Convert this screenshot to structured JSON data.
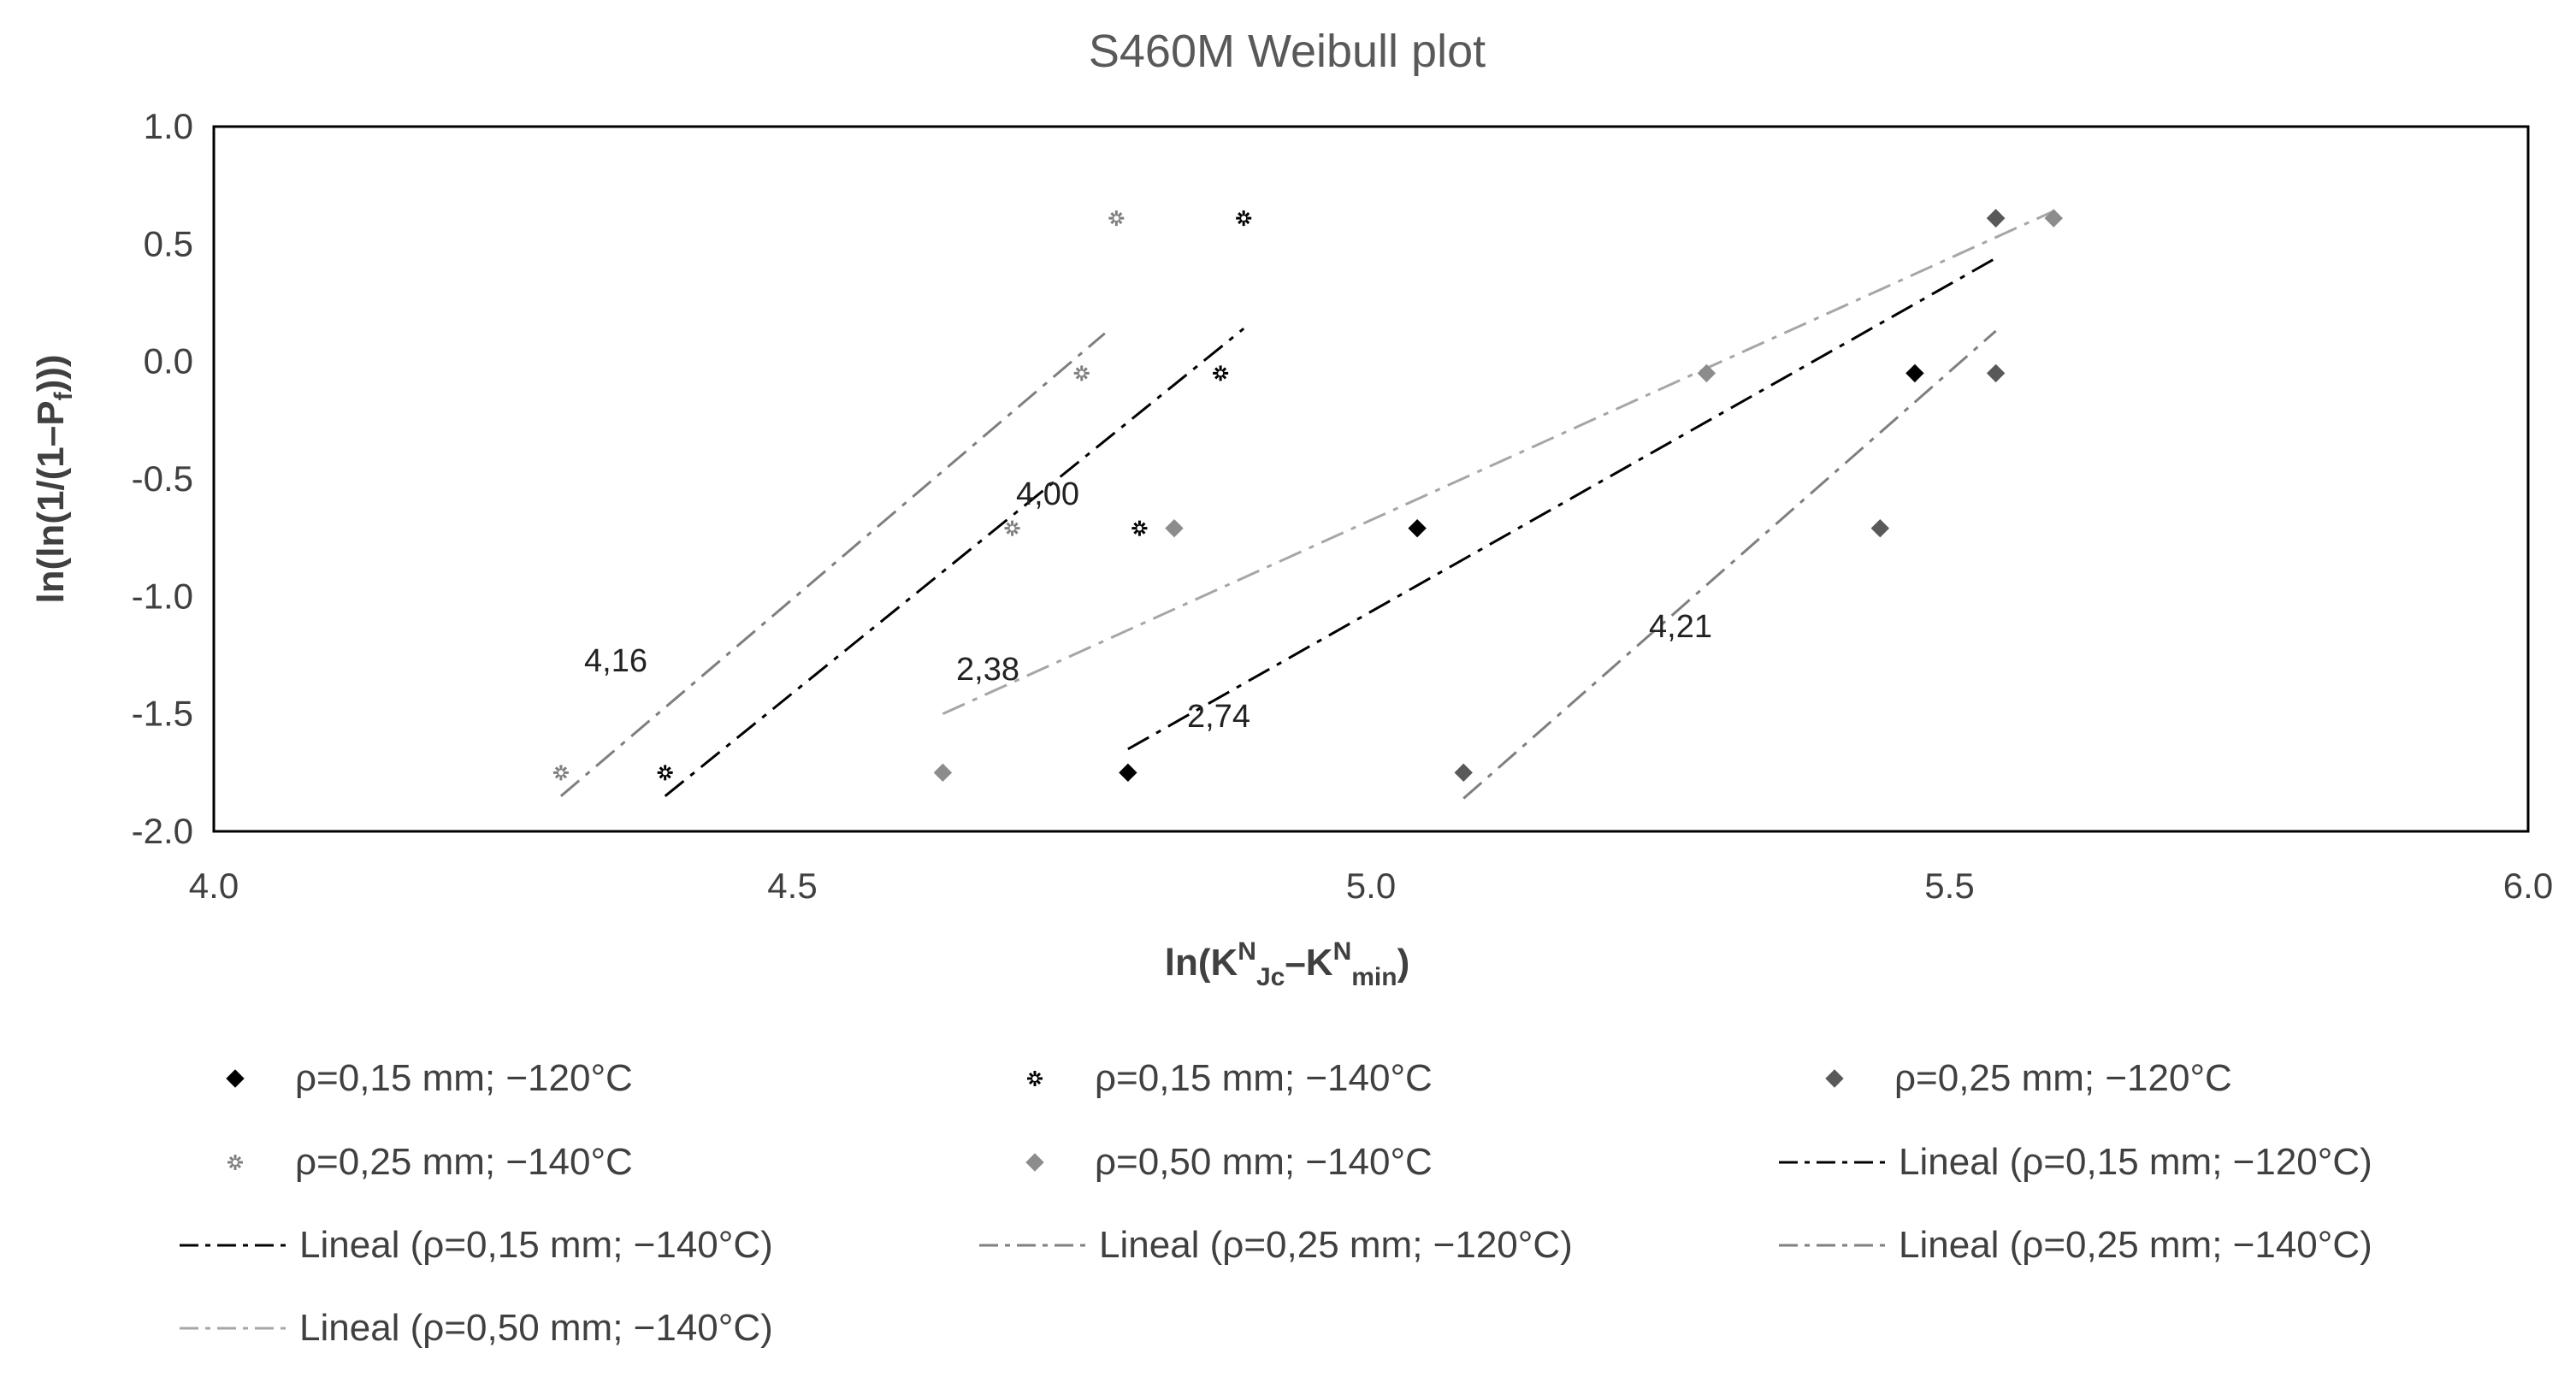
{
  "chart_data": {
    "type": "scatter",
    "title": "S460M Weibull plot",
    "xlabel": {
      "main": "ln(K",
      "sup1": "N",
      "sub1": "Jc",
      "mid": "–K",
      "sup2": "N",
      "sub2": "min",
      "end": ")"
    },
    "ylabel": {
      "main": "ln(ln(1/(1–P",
      "sub": "f",
      "end": ")))"
    },
    "xlim": [
      4.0,
      6.0
    ],
    "ylim": [
      -2.0,
      1.0
    ],
    "x_ticks": [
      "4.0",
      "4.5",
      "5.0",
      "5.5",
      "6.0"
    ],
    "y_ticks": [
      "1.0",
      "0.5",
      "0.0",
      "-0.5",
      "-1.0",
      "-1.5",
      "-2.0"
    ],
    "grid": false,
    "legend_position": "bottom",
    "series": [
      {
        "name": "ρ=0,15 mm; −120°C",
        "marker": "diamond-filled",
        "color": "#000000",
        "points": [
          [
            4.79,
            -1.75
          ],
          [
            5.04,
            -0.71
          ],
          [
            5.47,
            -0.05
          ],
          [
            5.54,
            0.61
          ]
        ]
      },
      {
        "name": "ρ=0,15 mm; −140°C",
        "marker": "star",
        "color": "#000000",
        "points": [
          [
            4.39,
            -1.75
          ],
          [
            4.8,
            -0.71
          ],
          [
            4.87,
            -0.05
          ],
          [
            4.89,
            0.61
          ]
        ]
      },
      {
        "name": "ρ=0,25 mm; −120°C",
        "marker": "diamond-filled",
        "color": "#595959",
        "points": [
          [
            5.08,
            -1.75
          ],
          [
            5.44,
            -0.71
          ],
          [
            5.54,
            -0.05
          ],
          [
            5.54,
            0.61
          ]
        ]
      },
      {
        "name": "ρ=0,25 mm; −140°C",
        "marker": "star",
        "color": "#7f7f7f",
        "points": [
          [
            4.3,
            -1.75
          ],
          [
            4.69,
            -0.71
          ],
          [
            4.75,
            -0.05
          ],
          [
            4.78,
            0.61
          ]
        ]
      },
      {
        "name": "ρ=0,50 mm; −140°C",
        "marker": "diamond-filled",
        "color": "#8c8c8c",
        "points": [
          [
            4.63,
            -1.75
          ],
          [
            4.83,
            -0.71
          ],
          [
            5.29,
            -0.05
          ],
          [
            5.59,
            0.61
          ]
        ]
      }
    ],
    "trendlines": [
      {
        "name": "Lineal (ρ=0,15 mm; −120°C)",
        "color": "#000000",
        "label": "2,74",
        "from": [
          4.79,
          -1.65
        ],
        "to": [
          5.54,
          0.44
        ]
      },
      {
        "name": "Lineal (ρ=0,15 mm; −140°C)",
        "color": "#000000",
        "label": "4,00",
        "from": [
          4.39,
          -1.85
        ],
        "to": [
          4.89,
          0.14
        ]
      },
      {
        "name": "Lineal (ρ=0,25 mm; −120°C)",
        "color": "#7f7f7f",
        "label": "4,21",
        "from": [
          5.08,
          -1.86
        ],
        "to": [
          5.54,
          0.13
        ]
      },
      {
        "name": "Lineal (ρ=0,25 mm; −140°C)",
        "color": "#7f7f7f",
        "label": "4,16",
        "from": [
          4.3,
          -1.85
        ],
        "to": [
          4.77,
          0.12
        ]
      },
      {
        "name": "Lineal (ρ=0,50 mm; −140°C)",
        "color": "#a6a6a6",
        "label": "2,38",
        "from": [
          4.63,
          -1.5
        ],
        "to": [
          5.59,
          0.64
        ]
      }
    ]
  }
}
